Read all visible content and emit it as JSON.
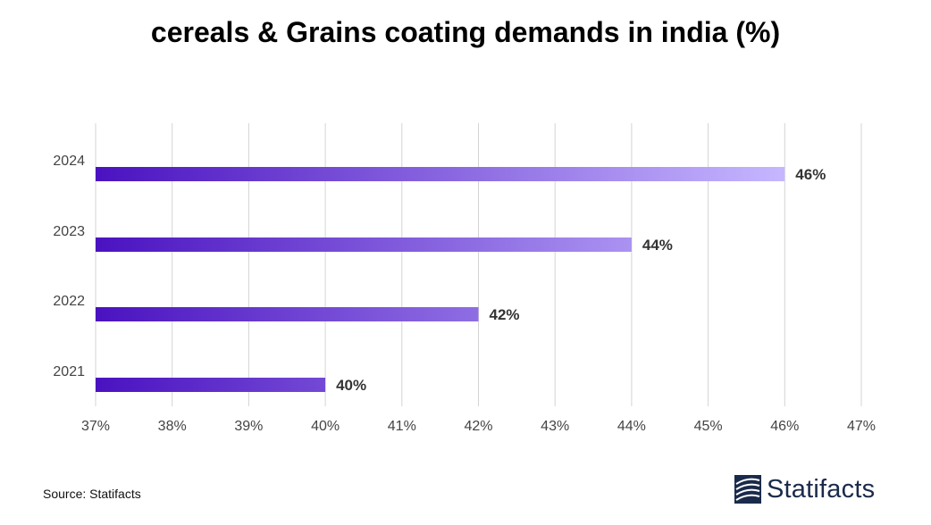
{
  "chart_data": {
    "type": "bar",
    "orientation": "horizontal",
    "title": "cereals & Grains coating demands in india (%)",
    "categories": [
      "2024",
      "2023",
      "2022",
      "2021"
    ],
    "values": [
      46,
      44,
      42,
      40
    ],
    "data_labels": [
      "46%",
      "44%",
      "42%",
      "40%"
    ],
    "xlim": [
      37,
      47
    ],
    "x_ticks": [
      "37%",
      "38%",
      "39%",
      "40%",
      "41%",
      "42%",
      "43%",
      "44%",
      "45%",
      "46%",
      "47%"
    ],
    "grid": true,
    "colors": {
      "bar_start": "#4a12c0",
      "bar_end": "#c6b7ff",
      "grid": "#d4d4d4",
      "tick_text": "#444444",
      "label_text": "#333333"
    }
  },
  "footer": {
    "source": "Source: Statifacts",
    "brand": "Statifacts",
    "brand_icon": "statifacts-logo-icon"
  }
}
